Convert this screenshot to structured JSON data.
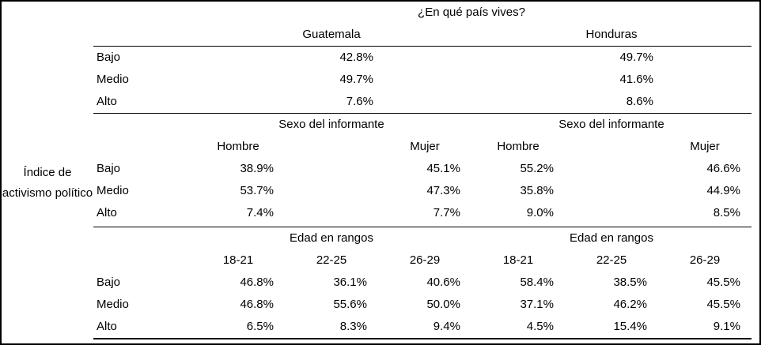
{
  "table": {
    "title": "¿En qué país vives?",
    "row_dim_label": "Índice de activismo político",
    "countries": {
      "g": "Guatemala",
      "h": "Honduras"
    },
    "sections": {
      "total": {
        "rows": [
          {
            "label": "Bajo",
            "g": "42.8%",
            "h": "49.7%"
          },
          {
            "label": "Medio",
            "g": "49.7%",
            "h": "41.6%"
          },
          {
            "label": "Alto",
            "g": "7.6%",
            "h": "8.6%"
          }
        ]
      },
      "sexo": {
        "banner": "Sexo del informante",
        "cols": [
          "Hombre",
          "Mujer"
        ],
        "rows": [
          {
            "label": "Bajo",
            "values": [
              "38.9%",
              "45.1%",
              "55.2%",
              "46.6%"
            ]
          },
          {
            "label": "Medio",
            "values": [
              "53.7%",
              "47.3%",
              "35.8%",
              "44.9%"
            ]
          },
          {
            "label": "Alto",
            "values": [
              "7.4%",
              "7.7%",
              "9.0%",
              "8.5%"
            ]
          }
        ]
      },
      "edad": {
        "banner": "Edad en rangos",
        "cols": [
          "18-21",
          "22-25",
          "26-29"
        ],
        "rows": [
          {
            "label": "Bajo",
            "values": [
              "46.8%",
              "36.1%",
              "40.6%",
              "58.4%",
              "38.5%",
              "45.5%"
            ]
          },
          {
            "label": "Medio",
            "values": [
              "46.8%",
              "55.6%",
              "50.0%",
              "37.1%",
              "46.2%",
              "45.5%"
            ]
          },
          {
            "label": "Alto",
            "values": [
              "6.5%",
              "8.3%",
              "9.4%",
              "4.5%",
              "15.4%",
              "9.1%"
            ]
          }
        ]
      }
    }
  },
  "chart_data": {
    "type": "table",
    "title": "¿En qué país vives?",
    "row_variable": "Índice de activismo político",
    "row_categories": [
      "Bajo",
      "Medio",
      "Alto"
    ],
    "unit": "percent",
    "column_groups": [
      {
        "group": "¿En qué país vives?",
        "columns": [
          "Guatemala",
          "Honduras"
        ],
        "values": {
          "Bajo": [
            42.8,
            49.7
          ],
          "Medio": [
            49.7,
            41.6
          ],
          "Alto": [
            7.6,
            8.6
          ]
        }
      },
      {
        "group": "Sexo del informante",
        "columns": [
          "Guatemala Hombre",
          "Guatemala Mujer",
          "Honduras Hombre",
          "Honduras Mujer"
        ],
        "values": {
          "Bajo": [
            38.9,
            45.1,
            55.2,
            46.6
          ],
          "Medio": [
            53.7,
            47.3,
            35.8,
            44.9
          ],
          "Alto": [
            7.4,
            7.7,
            9.0,
            8.5
          ]
        }
      },
      {
        "group": "Edad en rangos",
        "columns": [
          "Guatemala 18-21",
          "Guatemala 22-25",
          "Guatemala 26-29",
          "Honduras 18-21",
          "Honduras 22-25",
          "Honduras 26-29"
        ],
        "values": {
          "Bajo": [
            46.8,
            36.1,
            40.6,
            58.4,
            38.5,
            45.5
          ],
          "Medio": [
            46.8,
            55.6,
            50.0,
            37.1,
            46.2,
            45.5
          ],
          "Alto": [
            6.5,
            8.3,
            9.4,
            4.5,
            15.4,
            9.1
          ]
        }
      }
    ]
  }
}
